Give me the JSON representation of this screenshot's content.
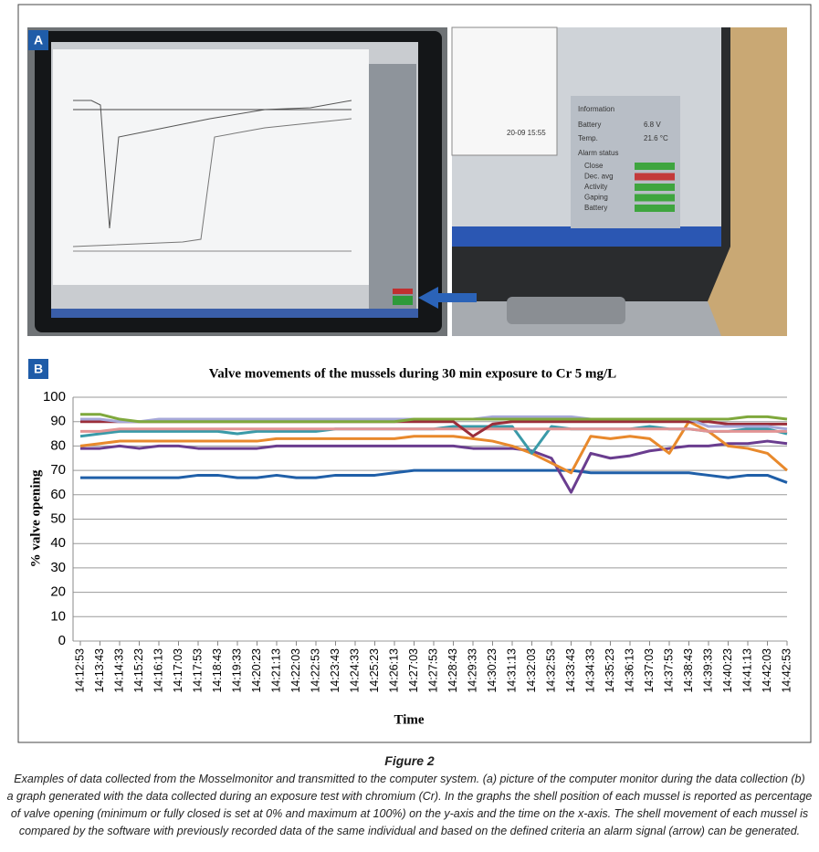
{
  "panel_a": {
    "label": "A",
    "info_texts": [
      "Information",
      "Battery",
      "6.8 V",
      "Temp.",
      "21.6 °C",
      "Alarm status",
      "20-09 15:55"
    ],
    "alarm_items": [
      "Close",
      "Dec. avg",
      "Activity",
      "Gaping",
      "Battery"
    ]
  },
  "panel_b_label": "B",
  "chart_data": {
    "type": "line",
    "title": "Valve movements of the mussels during 30 min exposure to Cr 5 mg/L",
    "x_label": "Time",
    "y_label": "% valve opening",
    "categories": [
      "14:12:53",
      "14:13:43",
      "14:14:33",
      "14:15:23",
      "14:16:13",
      "14:17:03",
      "14:17:53",
      "14:18:43",
      "14:19:33",
      "14:20:23",
      "14:21:13",
      "14:22:03",
      "14:22:53",
      "14:23:43",
      "14:24:33",
      "14:25:23",
      "14:26:13",
      "14:27:03",
      "14:27:53",
      "14:28:43",
      "14:29:33",
      "14:30:23",
      "14:31:13",
      "14:32:03",
      "14:32:53",
      "14:33:43",
      "14:34:33",
      "14:35:23",
      "14:36:13",
      "14:37:03",
      "14:37:53",
      "14:38:43",
      "14:39:33",
      "14:40:23",
      "14:41:13",
      "14:42:03",
      "14:42:53"
    ],
    "series": [
      {
        "color": "#1f5fa8",
        "values": [
          67,
          67,
          67,
          67,
          67,
          67,
          68,
          68,
          67,
          67,
          68,
          67,
          67,
          68,
          68,
          68,
          69,
          70,
          70,
          70,
          70,
          70,
          70,
          70,
          70,
          70,
          69,
          69,
          69,
          69,
          69,
          69,
          68,
          67,
          68,
          68,
          65
        ]
      },
      {
        "color": "#6a3d8f",
        "values": [
          79,
          79,
          80,
          79,
          80,
          80,
          79,
          79,
          79,
          79,
          80,
          80,
          80,
          80,
          80,
          80,
          80,
          80,
          80,
          80,
          79,
          79,
          79,
          78,
          75,
          61,
          77,
          75,
          76,
          78,
          79,
          80,
          80,
          81,
          81,
          82,
          81
        ]
      },
      {
        "color": "#e8892c",
        "values": [
          80,
          81,
          82,
          82,
          82,
          82,
          82,
          82,
          82,
          82,
          83,
          83,
          83,
          83,
          83,
          83,
          83,
          84,
          84,
          84,
          83,
          82,
          80,
          77,
          73,
          69,
          84,
          83,
          84,
          83,
          77,
          90,
          86,
          80,
          79,
          77,
          70
        ]
      },
      {
        "color": "#3a9aa8",
        "values": [
          84,
          85,
          86,
          86,
          86,
          86,
          86,
          86,
          85,
          86,
          86,
          86,
          86,
          87,
          87,
          87,
          87,
          87,
          87,
          88,
          88,
          88,
          88,
          77,
          88,
          87,
          87,
          87,
          87,
          88,
          87,
          87,
          86,
          86,
          87,
          87,
          85
        ]
      },
      {
        "color": "#e39494",
        "values": [
          86,
          86,
          87,
          87,
          87,
          87,
          87,
          87,
          87,
          87,
          87,
          87,
          87,
          87,
          87,
          87,
          87,
          87,
          87,
          87,
          87,
          87,
          87,
          87,
          87,
          87,
          87,
          87,
          87,
          87,
          87,
          87,
          86,
          86,
          86,
          86,
          86
        ]
      },
      {
        "color": "#9b2e3a",
        "values": [
          90,
          90,
          90,
          90,
          90,
          90,
          90,
          90,
          90,
          90,
          90,
          90,
          90,
          90,
          90,
          90,
          90,
          90,
          90,
          90,
          84,
          89,
          90,
          90,
          90,
          90,
          90,
          90,
          90,
          90,
          90,
          90,
          90,
          89,
          89,
          89,
          89
        ]
      },
      {
        "color": "#a6a8d8",
        "values": [
          91,
          91,
          90,
          90,
          91,
          91,
          91,
          91,
          91,
          91,
          91,
          91,
          91,
          91,
          91,
          91,
          91,
          91,
          91,
          91,
          91,
          92,
          92,
          92,
          92,
          92,
          91,
          91,
          91,
          91,
          91,
          91,
          88,
          88,
          88,
          88,
          87
        ]
      },
      {
        "color": "#7fa83c",
        "values": [
          93,
          93,
          91,
          90,
          90,
          90,
          90,
          90,
          90,
          90,
          90,
          90,
          90,
          90,
          90,
          90,
          90,
          91,
          91,
          91,
          91,
          91,
          91,
          91,
          91,
          91,
          91,
          91,
          91,
          91,
          91,
          91,
          91,
          91,
          92,
          92,
          91
        ]
      }
    ],
    "ylim": [
      0,
      100
    ],
    "yticks": [
      0,
      10,
      20,
      30,
      40,
      50,
      60,
      70,
      80,
      90,
      100
    ],
    "grid": true
  },
  "caption": {
    "title": "Figure 2",
    "lines": [
      "Examples of data collected from the Mosselmonitor and transmitted to the computer system. (a) picture of the computer monitor during the data collection (b)",
      "a graph generated with the data collected during an exposure test with chromium (Cr). In the graphs the shell position of each mussel is reported as percentage",
      "of valve opening (minimum or fully closed is set at 0% and maximum at 100%) on the y-axis and the time on the x-axis. The shell movement of each mussel is",
      "compared by the software with previously recorded data of the same individual and based on the defined criteria an alarm signal (arrow) can be generated."
    ]
  }
}
